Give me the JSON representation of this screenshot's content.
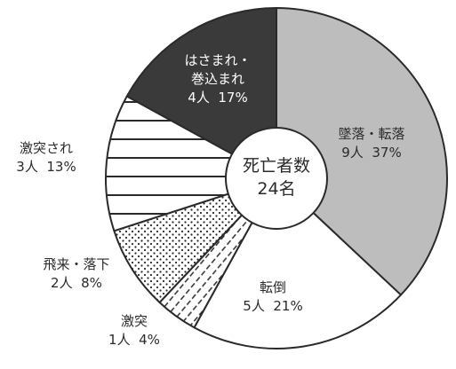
{
  "chart_data": {
    "type": "pie",
    "total_label_line1": "死亡者数",
    "total_label_line2": "24名",
    "slices": [
      {
        "name": "墜落・転落",
        "count_label": "9人",
        "percent_label": "37%",
        "value": 37,
        "fill": "#bdbdbd",
        "pattern": "solid"
      },
      {
        "name": "転倒",
        "count_label": "5人",
        "percent_label": "21%",
        "value": 21,
        "fill": "#ffffff",
        "pattern": "solid"
      },
      {
        "name": "激突",
        "count_label": "1人",
        "percent_label": "4%",
        "value": 4,
        "fill": "#ffffff",
        "pattern": "diagonal-hatch"
      },
      {
        "name": "飛来・落下",
        "count_label": "2人",
        "percent_label": "8%",
        "value": 8,
        "fill": "#ffffff",
        "pattern": "dots"
      },
      {
        "name": "激突され",
        "count_label": "3人",
        "percent_label": "13%",
        "value": 13,
        "fill": "#ffffff",
        "pattern": "horizontal-lines"
      },
      {
        "name": "はさまれ・巻込まれ",
        "name_line1": "はさまれ・",
        "name_line2": "巻込まれ",
        "count_label": "4人",
        "percent_label": "17%",
        "value": 17,
        "fill": "#3a3a3a",
        "pattern": "solid"
      }
    ],
    "colors": {
      "outline": "#2a2a2a",
      "text": "#2a2a2a",
      "text_light": "#ffffff"
    }
  }
}
